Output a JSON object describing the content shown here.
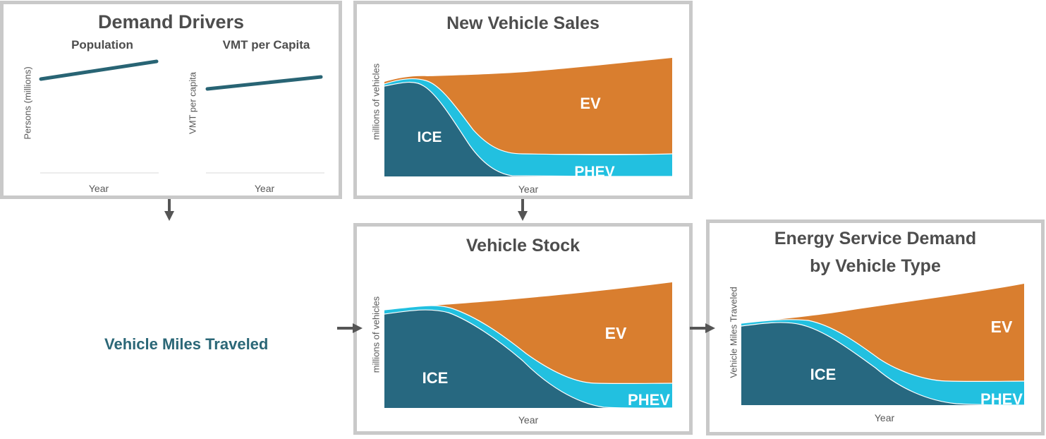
{
  "colors": {
    "ice": "#276880",
    "phev": "#22c0e0",
    "ev": "#d97e2f",
    "line": "#286474",
    "arrow": "#555555",
    "border": "#c9c9c9"
  },
  "demand_drivers": {
    "title": "Demand Drivers",
    "population": {
      "title": "Population",
      "ylabel": "Persons (millions)",
      "xlabel": "Year"
    },
    "vmt": {
      "title": "VMT per Capita",
      "ylabel": "VMT per capita",
      "xlabel": "Year"
    }
  },
  "vmt_label": "Vehicle Miles Traveled",
  "new_sales": {
    "title": "New Vehicle Sales",
    "ylabel": "millions of vehicles",
    "xlabel": "Year",
    "labels": {
      "ice": "ICE",
      "ev": "EV",
      "phev": "PHEV"
    }
  },
  "stock": {
    "title": "Vehicle Stock",
    "ylabel": "millions of vehicles",
    "xlabel": "Year",
    "labels": {
      "ice": "ICE",
      "ev": "EV",
      "phev": "PHEV"
    }
  },
  "service_demand": {
    "title_line1": "Energy Service Demand",
    "title_line2": "by Vehicle Type",
    "ylabel": "Vehicle Miles Traveled",
    "xlabel": "Year",
    "labels": {
      "ice": "ICE",
      "ev": "EV",
      "phev": "PHEV"
    }
  }
}
